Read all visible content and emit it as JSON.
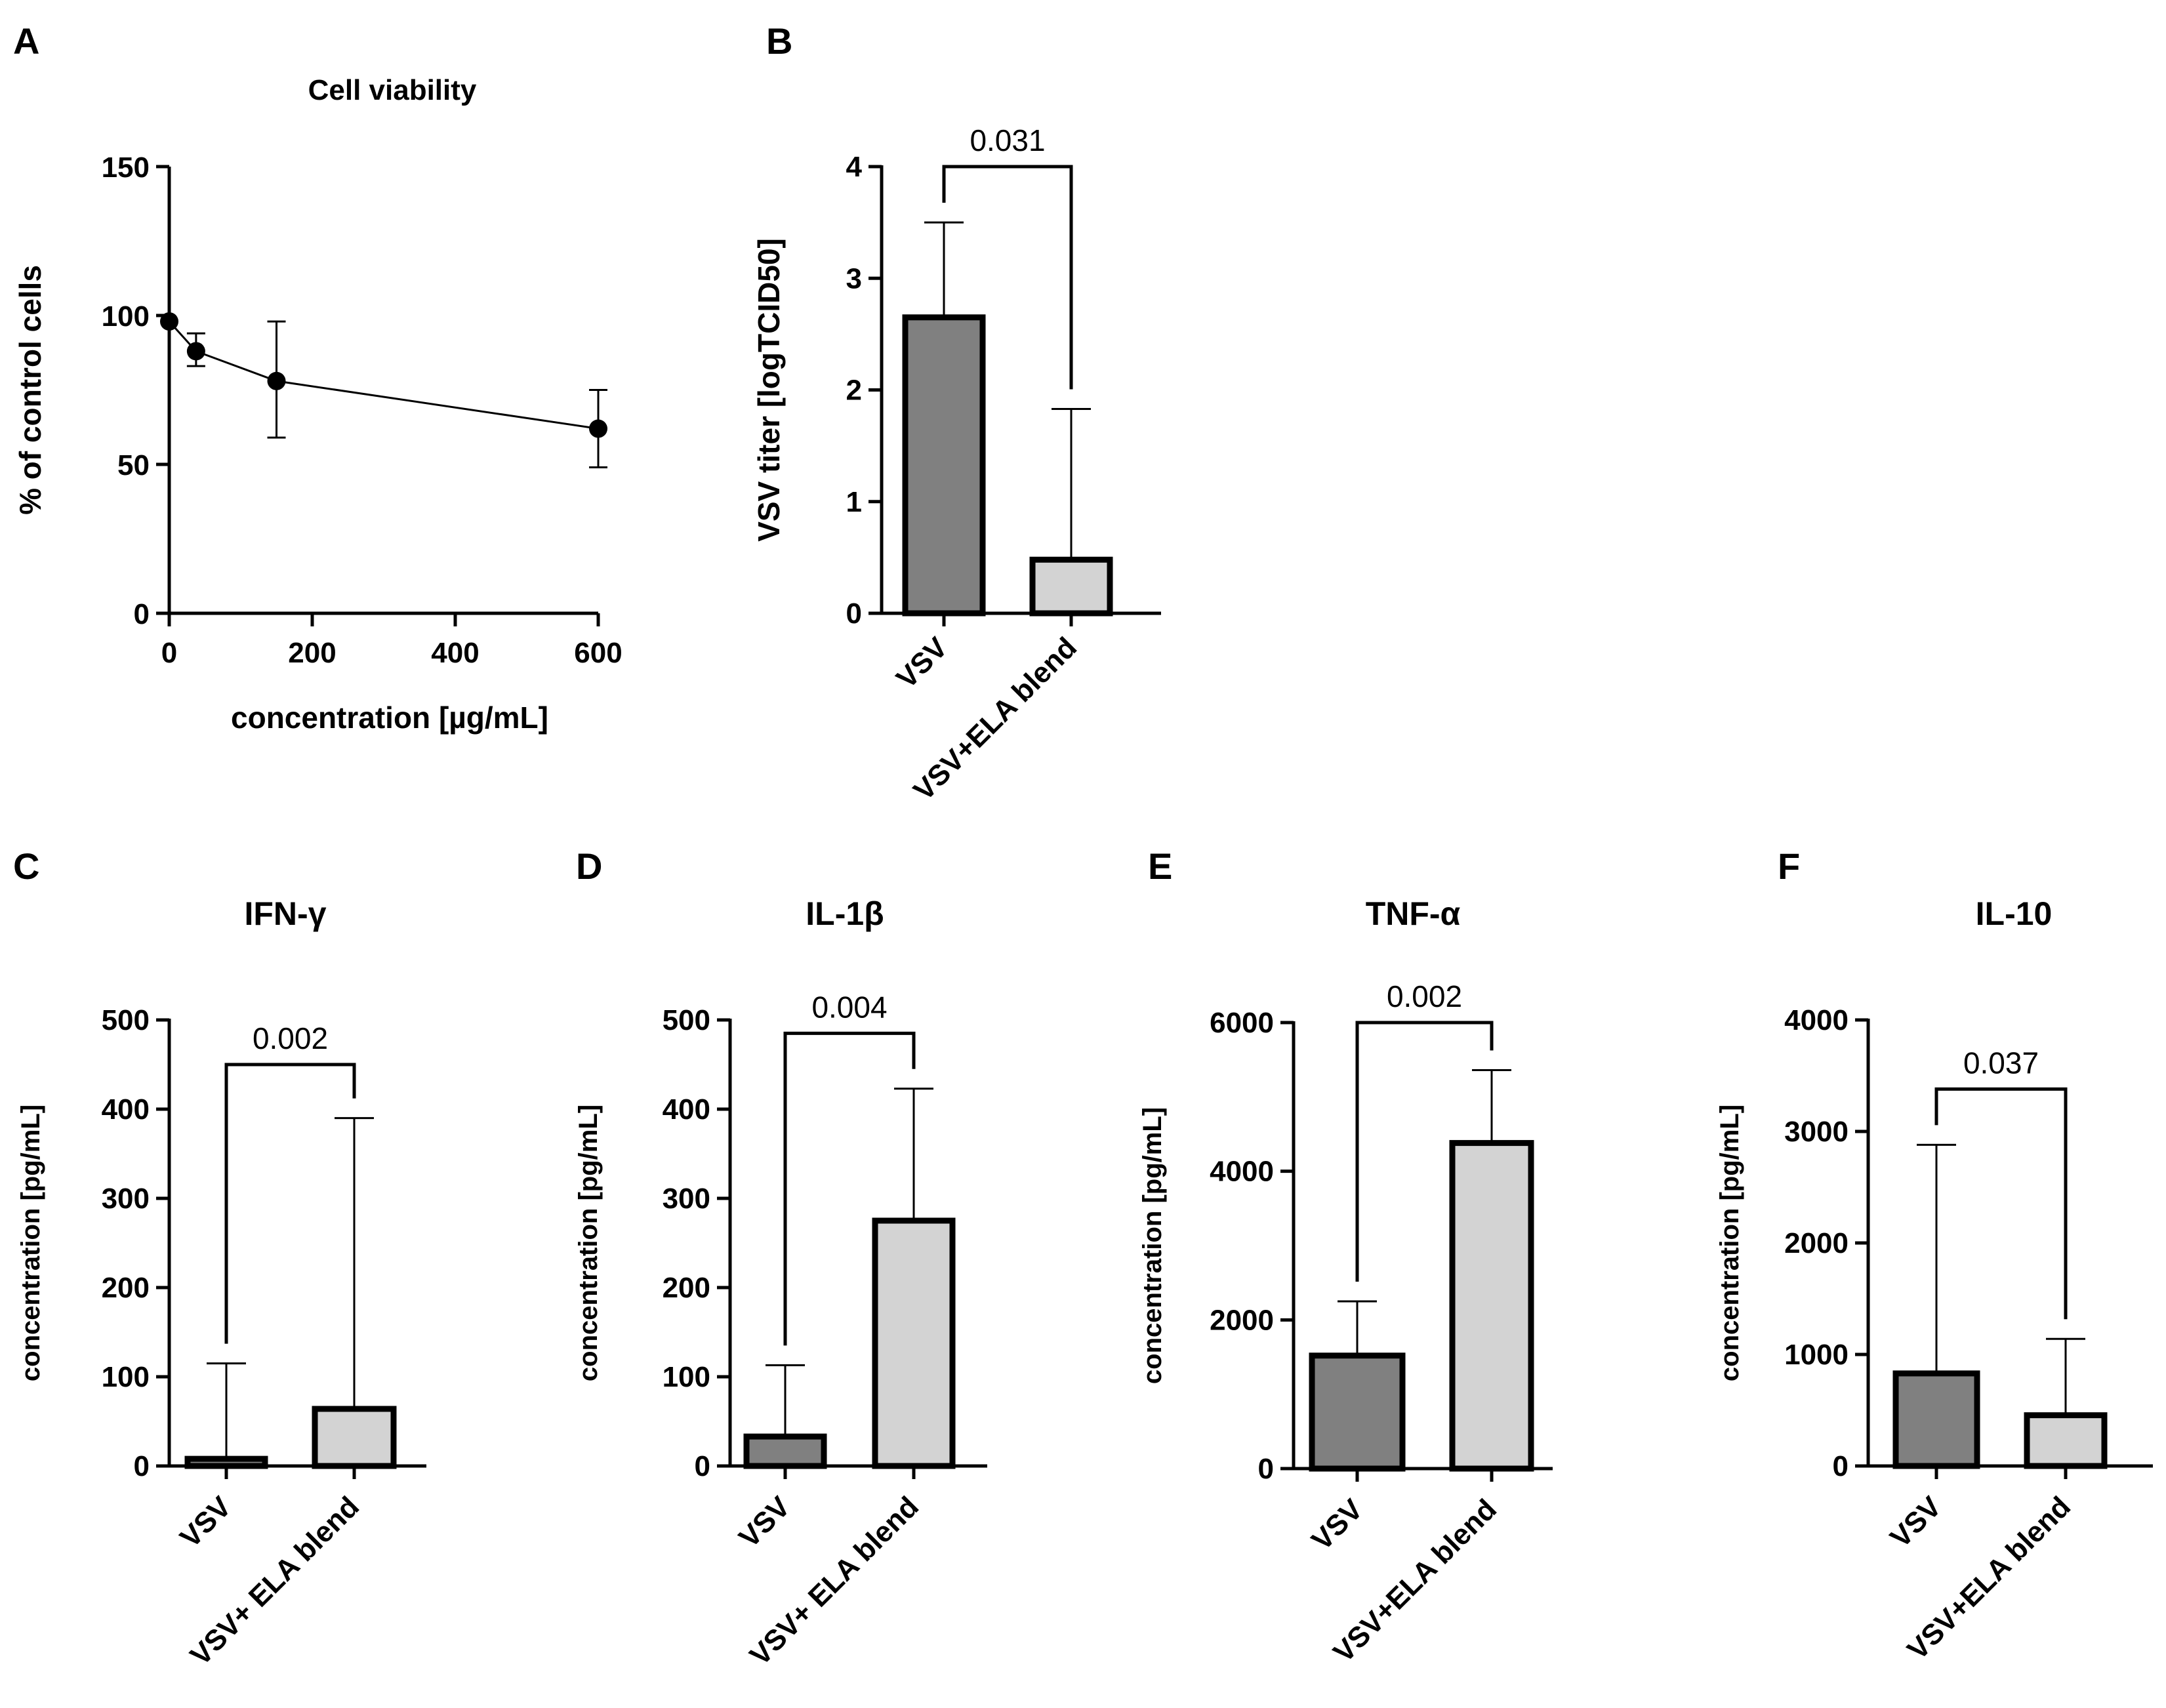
{
  "chart_data": [
    {
      "panel": "A",
      "type": "line",
      "title": "Cell viability",
      "xlabel": "concentration [µg/mL]",
      "ylabel": "% of control cells",
      "x": [
        0,
        37.5,
        150,
        600
      ],
      "y": [
        98,
        88,
        78,
        62
      ],
      "err_low": [
        98,
        83,
        59,
        49
      ],
      "err_high": [
        98,
        94,
        98,
        75
      ],
      "xlim": [
        0,
        600
      ],
      "ylim": [
        0,
        150
      ],
      "xticks": [
        0,
        200,
        400,
        600
      ],
      "yticks": [
        0,
        50,
        100,
        150
      ]
    },
    {
      "panel": "B",
      "type": "bar",
      "title": "",
      "ylabel": "VSV titer [logTCID50]",
      "categories": [
        "VSV",
        "VSV+ELA blend"
      ],
      "values": [
        2.65,
        0.48
      ],
      "err_high": [
        3.5,
        1.83
      ],
      "ylim": [
        0,
        4
      ],
      "yticks": [
        0,
        1,
        2,
        3,
        4
      ],
      "pvalue": "0.031",
      "bracket_y": 4.0
    },
    {
      "panel": "C",
      "type": "bar",
      "title": "IFN-γ",
      "ylabel": "concentration [pg/mL]",
      "categories": [
        "VSV",
        "VSV+ ELA blend"
      ],
      "values": [
        8,
        64
      ],
      "err_high": [
        115,
        390
      ],
      "ylim": [
        0,
        500
      ],
      "yticks": [
        0,
        100,
        200,
        300,
        400,
        500
      ],
      "pvalue": "0.002",
      "bracket_y": 450
    },
    {
      "panel": "D",
      "type": "bar",
      "title": "IL-1β",
      "ylabel": "concentration [pg/mL]",
      "categories": [
        "VSV",
        "VSV+ ELA blend"
      ],
      "values": [
        33,
        275
      ],
      "err_high": [
        113,
        423
      ],
      "ylim": [
        0,
        500
      ],
      "yticks": [
        0,
        100,
        200,
        300,
        400,
        500
      ],
      "pvalue": "0.004",
      "bracket_y": 485
    },
    {
      "panel": "E",
      "type": "bar",
      "title": "TNF-α",
      "ylabel": "concentration [pg/mL]",
      "categories": [
        "VSV",
        "VSV+ELA blend"
      ],
      "values": [
        1520,
        4380
      ],
      "err_high": [
        2250,
        5360
      ],
      "ylim": [
        0,
        6000
      ],
      "yticks": [
        0,
        2000,
        4000,
        6000
      ],
      "pvalue": "0.002",
      "bracket_y": 6000
    },
    {
      "panel": "F",
      "type": "bar",
      "title": "IL-10",
      "ylabel": "concentration [pg/mL]",
      "categories": [
        "VSV",
        "VSV+ELA blend"
      ],
      "values": [
        830,
        455
      ],
      "err_high": [
        2880,
        1140
      ],
      "ylim": [
        0,
        4000
      ],
      "yticks": [
        0,
        1000,
        2000,
        3000,
        4000
      ],
      "pvalue": "0.037",
      "bracket_y": 3380
    }
  ],
  "colors": {
    "bar_dark": "#808080",
    "bar_light": "#d3d3d3",
    "stroke": "#000000"
  }
}
